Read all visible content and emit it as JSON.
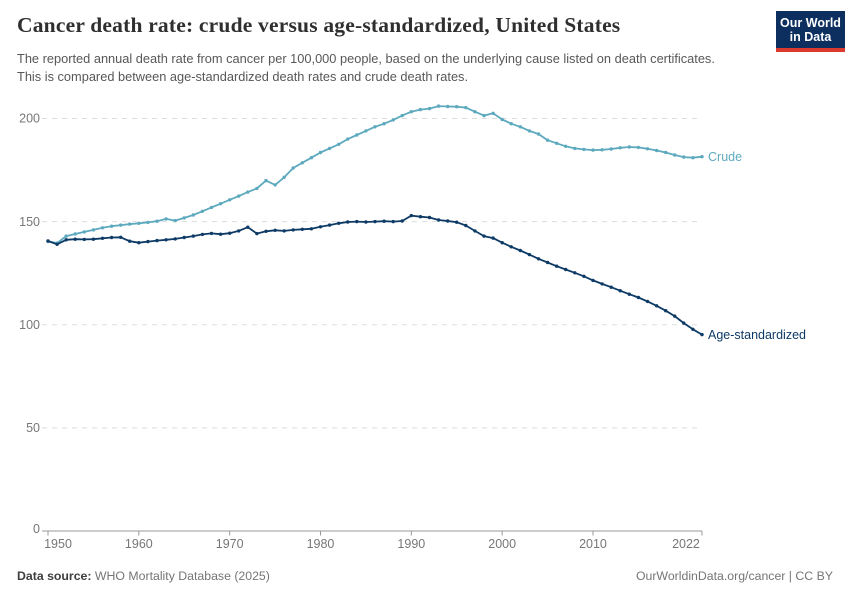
{
  "header": {
    "title": "Cancer death rate: crude versus age-standardized, United States",
    "subtitle": "The reported annual death rate from cancer per 100,000 people, based on the underlying cause listed on death certificates. This is compared between age-standardized death rates and crude death rates."
  },
  "logo": {
    "line1": "Our World",
    "line2": "in Data",
    "bg_color": "#0d2f5f",
    "bar_color": "#dc3a2f"
  },
  "chart_data": {
    "type": "line",
    "title": "Cancer death rate: crude versus age-standardized, United States",
    "xlabel": "",
    "ylabel": "",
    "xlim": [
      1950,
      2022
    ],
    "ylim": [
      0,
      210
    ],
    "xticks": [
      1950,
      1960,
      1970,
      1980,
      1990,
      2000,
      2010,
      2022
    ],
    "yticks": [
      0,
      50,
      100,
      150,
      200
    ],
    "grid": "horizontal-dashed",
    "legend_position": "end-of-line-labels",
    "x": [
      1950,
      1951,
      1952,
      1953,
      1954,
      1955,
      1956,
      1957,
      1958,
      1959,
      1960,
      1961,
      1962,
      1963,
      1964,
      1965,
      1966,
      1967,
      1968,
      1969,
      1970,
      1971,
      1972,
      1973,
      1974,
      1975,
      1976,
      1977,
      1978,
      1979,
      1980,
      1981,
      1982,
      1983,
      1984,
      1985,
      1986,
      1987,
      1988,
      1989,
      1990,
      1991,
      1992,
      1993,
      1994,
      1995,
      1996,
      1997,
      1998,
      1999,
      2000,
      2001,
      2002,
      2003,
      2004,
      2005,
      2006,
      2007,
      2008,
      2009,
      2010,
      2011,
      2012,
      2013,
      2014,
      2015,
      2016,
      2017,
      2018,
      2019,
      2020,
      2021,
      2022
    ],
    "series": [
      {
        "name": "Crude",
        "color": "#5da9be",
        "values": [
          140.4,
          139.6,
          143.0,
          144.0,
          145.0,
          146.0,
          147.0,
          147.8,
          148.3,
          148.8,
          149.2,
          149.6,
          150.2,
          151.3,
          150.5,
          151.8,
          153.2,
          155.0,
          156.9,
          158.7,
          160.6,
          162.4,
          164.3,
          166.1,
          169.9,
          167.8,
          171.5,
          176.0,
          178.5,
          181.0,
          183.5,
          185.5,
          187.5,
          190.0,
          192.0,
          194.0,
          196.0,
          197.5,
          199.3,
          201.4,
          203.3,
          204.3,
          204.8,
          206.0,
          205.8,
          205.7,
          205.3,
          203.3,
          201.4,
          202.5,
          199.5,
          197.5,
          196.0,
          194.0,
          192.5,
          189.5,
          188.0,
          186.5,
          185.5,
          185.0,
          184.7,
          184.8,
          185.2,
          185.8,
          186.2,
          186.0,
          185.3,
          184.5,
          183.5,
          182.3,
          181.3,
          181.0,
          181.5
        ]
      },
      {
        "name": "Age-standardized",
        "color": "#0e3b66",
        "values": [
          140.6,
          139.0,
          141.2,
          141.5,
          141.4,
          141.5,
          141.9,
          142.3,
          142.4,
          140.5,
          139.8,
          140.3,
          140.8,
          141.2,
          141.6,
          142.3,
          143.0,
          143.8,
          144.3,
          143.9,
          144.4,
          145.5,
          147.3,
          144.2,
          145.3,
          145.8,
          145.5,
          146.0,
          146.3,
          146.5,
          147.5,
          148.3,
          149.2,
          149.8,
          150.0,
          149.8,
          150.0,
          150.2,
          150.0,
          150.3,
          152.9,
          152.4,
          152.0,
          150.8,
          150.3,
          149.7,
          148.1,
          145.5,
          143.0,
          142.0,
          139.8,
          137.8,
          136.0,
          134.0,
          132.0,
          130.2,
          128.4,
          126.8,
          125.2,
          123.5,
          121.5,
          119.8,
          118.2,
          116.5,
          114.8,
          113.2,
          111.3,
          109.2,
          106.8,
          104.2,
          100.8,
          97.8,
          95.2
        ]
      }
    ]
  },
  "footer": {
    "source_label": "Data source:",
    "source_value": "WHO Mortality Database (2025)",
    "license": "OurWorldinData.org/cancer | CC BY"
  },
  "colors": {
    "crude_line": "#5da9be",
    "age_standardized_line": "#0e3b66",
    "gridline": "#dddddd",
    "axis": "#999999",
    "tick_label": "#777777"
  }
}
